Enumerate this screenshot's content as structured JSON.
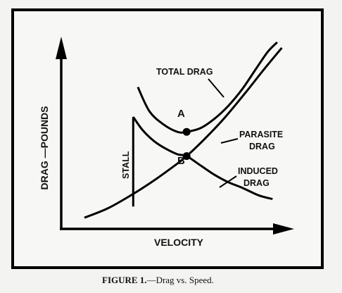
{
  "chart_data": {
    "type": "line",
    "title": "",
    "xlabel": "VELOCITY",
    "ylabel": "DRAG —POUNDS",
    "grid": false,
    "axis_ticks": false,
    "x_range": [
      0,
      10
    ],
    "y_range": [
      0,
      10
    ],
    "series": [
      {
        "name": "TOTAL DRAG",
        "x": [
          3.3,
          3.8,
          4.4,
          5.0,
          5.4,
          6.0,
          6.6,
          7.2,
          7.8,
          8.4,
          8.9,
          9.3
        ],
        "y": [
          7.6,
          6.3,
          5.6,
          5.2,
          5.2,
          5.4,
          5.9,
          6.6,
          7.5,
          8.6,
          9.5,
          10.0
        ]
      },
      {
        "name": "PARASITE DRAG",
        "x": [
          1.0,
          2.0,
          3.0,
          4.0,
          5.0,
          5.4,
          6.0,
          7.0,
          8.0,
          8.7,
          9.5
        ],
        "y": [
          0.6,
          1.1,
          1.8,
          2.6,
          3.5,
          3.9,
          4.6,
          5.9,
          7.4,
          8.5,
          9.7
        ]
      },
      {
        "name": "INDUCED DRAG",
        "x": [
          3.1,
          3.5,
          4.0,
          4.5,
          5.0,
          5.4,
          6.0,
          6.6,
          7.2,
          7.8,
          8.5,
          9.1
        ],
        "y": [
          6.0,
          5.3,
          4.7,
          4.3,
          4.0,
          3.9,
          3.4,
          2.9,
          2.5,
          2.2,
          1.8,
          1.6
        ]
      }
    ],
    "stall": {
      "label": "STALL",
      "x": 3.1,
      "y_top": 6.0,
      "y_bottom": 1.2
    },
    "points": [
      {
        "label": "A",
        "x": 5.4,
        "y": 5.2
      },
      {
        "label": "B",
        "x": 5.4,
        "y": 3.9
      }
    ],
    "curve_labels": {
      "total": "TOTAL DRAG",
      "parasite_line1": "PARASITE",
      "parasite_line2": "DRAG",
      "induced_line1": "INDUCED",
      "induced_line2": "DRAG"
    }
  },
  "caption": {
    "prefix": "FIGURE 1.",
    "text": "—Drag vs. Speed."
  }
}
